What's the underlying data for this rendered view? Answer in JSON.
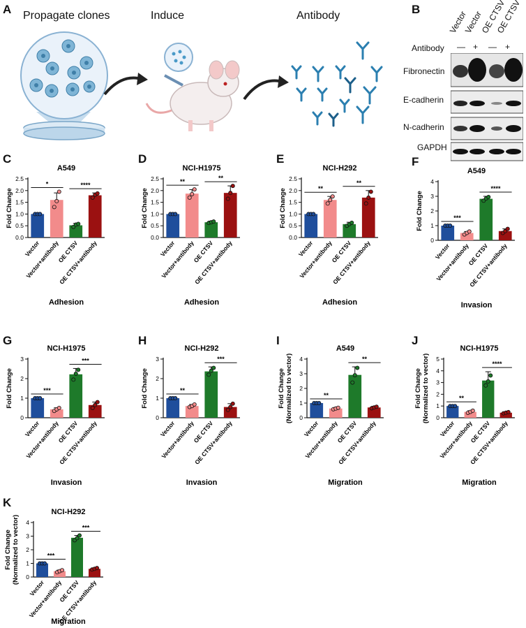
{
  "panels": {
    "A": "A",
    "B": "B",
    "C": "C",
    "D": "D",
    "E": "E",
    "F": "F",
    "G": "G",
    "H": "H",
    "I": "I",
    "J": "J",
    "K": "K"
  },
  "schematic": {
    "step1": "Propagate clones",
    "step2": "Induce",
    "step3": "Antibody"
  },
  "western": {
    "lanes": [
      "Vector",
      "Vector",
      "OE CTSV",
      "OE CTSV"
    ],
    "antibody_label": "Antibody",
    "antibody_states": [
      "—",
      "+",
      "—",
      "+"
    ],
    "proteins": [
      "Fibronectin",
      "E-cadherin",
      "N-cadherin",
      "GAPDH"
    ]
  },
  "colors": {
    "vector": "#1f4e9c",
    "vector_antibody": "#f28b8b",
    "oe_ctsv": "#1e7a2a",
    "oe_ctsv_antibody": "#9b1111"
  },
  "chart_data": [
    {
      "id": "C",
      "type": "bar",
      "title": "A549",
      "xlabel": "Adhesion",
      "ylabel": "Fold Change",
      "categories": [
        "Vector",
        "Vector+antibody",
        "OE CTSV",
        "OE CTSV+antibody"
      ],
      "values": [
        1.0,
        1.6,
        0.52,
        1.8
      ],
      "errors": [
        0.0,
        0.3,
        0.08,
        0.1
      ],
      "points": [
        [
          1.0,
          1.0,
          1.0
        ],
        [
          1.3,
          1.55,
          1.95
        ],
        [
          0.45,
          0.55,
          0.58
        ],
        [
          1.7,
          1.82,
          1.88
        ]
      ],
      "ylim": [
        0.0,
        2.5
      ],
      "yticks": [
        "0.0",
        "0.5",
        "1.0",
        "1.5",
        "2.0",
        "2.5"
      ],
      "ytick_values": [
        0,
        0.5,
        1,
        1.5,
        2,
        2.5
      ],
      "sig": [
        {
          "from": 0,
          "to": 1,
          "label": "*"
        },
        {
          "from": 2,
          "to": 3,
          "label": "****"
        }
      ]
    },
    {
      "id": "D",
      "type": "bar",
      "title": "NCI-H1975",
      "xlabel": "Adhesion",
      "ylabel": "Fold Change",
      "categories": [
        "Vector",
        "Vector+antibody",
        "OE CTSV",
        "OE CTSV+antibody"
      ],
      "values": [
        1.0,
        1.87,
        0.65,
        1.9
      ],
      "errors": [
        0.0,
        0.17,
        0.05,
        0.3
      ],
      "points": [
        [
          1.0,
          1.0,
          1.0
        ],
        [
          1.7,
          1.85,
          2.05
        ],
        [
          0.62,
          0.65,
          0.68
        ],
        [
          1.65,
          1.9,
          2.2
        ]
      ],
      "ylim": [
        0.0,
        2.5
      ],
      "yticks": [
        "0.0",
        "0.5",
        "1.0",
        "1.5",
        "2.0",
        "2.5"
      ],
      "ytick_values": [
        0,
        0.5,
        1,
        1.5,
        2,
        2.5
      ],
      "sig": [
        {
          "from": 0,
          "to": 1,
          "label": "**"
        },
        {
          "from": 2,
          "to": 3,
          "label": "**"
        }
      ]
    },
    {
      "id": "E",
      "type": "bar",
      "title": "NCI-H292",
      "xlabel": "Adhesion",
      "ylabel": "Fold Change",
      "categories": [
        "Vector",
        "Vector+antibody",
        "OE CTSV",
        "OE CTSV+antibody"
      ],
      "values": [
        1.0,
        1.6,
        0.57,
        1.7
      ],
      "errors": [
        0.0,
        0.15,
        0.08,
        0.3
      ],
      "points": [
        [
          1.0,
          1.0,
          1.0
        ],
        [
          1.45,
          1.6,
          1.75
        ],
        [
          0.5,
          0.57,
          0.63
        ],
        [
          1.45,
          1.7,
          1.95
        ]
      ],
      "ylim": [
        0.0,
        2.5
      ],
      "yticks": [
        "0.0",
        "0.5",
        "1.0",
        "1.5",
        "2.0",
        "2.5"
      ],
      "ytick_values": [
        0,
        0.5,
        1,
        1.5,
        2,
        2.5
      ],
      "sig": [
        {
          "from": 0,
          "to": 1,
          "label": "**"
        },
        {
          "from": 2,
          "to": 3,
          "label": "**"
        }
      ]
    },
    {
      "id": "F",
      "type": "bar",
      "title": "A549",
      "xlabel": "Invasion",
      "ylabel": "Fold Change",
      "categories": [
        "Vector",
        "Vector+antibody",
        "OE CTSV",
        "OE CTSV+antibody"
      ],
      "values": [
        1.0,
        0.5,
        2.83,
        0.63
      ],
      "errors": [
        0.0,
        0.1,
        0.17,
        0.15
      ],
      "points": [
        [
          1.0,
          1.0,
          1.0
        ],
        [
          0.4,
          0.5,
          0.6
        ],
        [
          2.7,
          2.85,
          2.95
        ],
        [
          0.5,
          0.63,
          0.78
        ]
      ],
      "ylim": [
        0,
        4
      ],
      "yticks": [
        "0",
        "1",
        "2",
        "3",
        "4"
      ],
      "ytick_values": [
        0,
        1,
        2,
        3,
        4
      ],
      "sig": [
        {
          "from": 0,
          "to": 1,
          "label": "***"
        },
        {
          "from": 2,
          "to": 3,
          "label": "****"
        }
      ]
    },
    {
      "id": "G",
      "type": "bar",
      "title": "NCI-H1975",
      "xlabel": "Invasion",
      "ylabel": "Fold Change",
      "categories": [
        "Vector",
        "Vector+antibody",
        "OE CTSV",
        "OE CTSV+antibody"
      ],
      "values": [
        1.0,
        0.43,
        2.22,
        0.65
      ],
      "errors": [
        0.0,
        0.08,
        0.3,
        0.15
      ],
      "points": [
        [
          1.0,
          1.0,
          1.0
        ],
        [
          0.35,
          0.43,
          0.5
        ],
        [
          1.95,
          2.25,
          2.45
        ],
        [
          0.5,
          0.65,
          0.8
        ]
      ],
      "ylim": [
        0,
        3
      ],
      "yticks": [
        "0",
        "1",
        "2",
        "3"
      ],
      "ytick_values": [
        0,
        1,
        2,
        3
      ],
      "sig": [
        {
          "from": 0,
          "to": 1,
          "label": "***"
        },
        {
          "from": 2,
          "to": 3,
          "label": "***"
        }
      ]
    },
    {
      "id": "H",
      "type": "bar",
      "title": "NCI-H292",
      "xlabel": "Invasion",
      "ylabel": "Fold Change",
      "categories": [
        "Vector",
        "Vector+antibody",
        "OE CTSV",
        "OE CTSV+antibody"
      ],
      "values": [
        1.0,
        0.6,
        2.37,
        0.55
      ],
      "errors": [
        0.0,
        0.08,
        0.23,
        0.17
      ],
      "points": [
        [
          1.0,
          1.0,
          1.0
        ],
        [
          0.55,
          0.6,
          0.68
        ],
        [
          2.2,
          2.4,
          2.55
        ],
        [
          0.4,
          0.55,
          0.72
        ]
      ],
      "ylim": [
        0,
        3
      ],
      "yticks": [
        "0",
        "1",
        "2",
        "3"
      ],
      "ytick_values": [
        0,
        1,
        2,
        3
      ],
      "sig": [
        {
          "from": 0,
          "to": 1,
          "label": "**"
        },
        {
          "from": 2,
          "to": 3,
          "label": "***"
        }
      ]
    },
    {
      "id": "I",
      "type": "bar",
      "title": "A549",
      "xlabel": "Migration",
      "ylabel": "Fold Change",
      "ylabel2": "(Normalized to vector)",
      "categories": [
        "Vector",
        "Vector+antibody",
        "OE CTSV",
        "OE CTSV+antibody"
      ],
      "values": [
        1.0,
        0.63,
        2.92,
        0.7
      ],
      "errors": [
        0.0,
        0.07,
        0.55,
        0.08
      ],
      "points": [
        [
          1.0,
          1.0,
          1.0
        ],
        [
          0.58,
          0.63,
          0.68
        ],
        [
          2.4,
          2.9,
          3.4
        ],
        [
          0.65,
          0.7,
          0.75
        ]
      ],
      "ylim": [
        0,
        4
      ],
      "yticks": [
        "0",
        "1",
        "2",
        "3",
        "4"
      ],
      "ytick_values": [
        0,
        1,
        2,
        3,
        4
      ],
      "sig": [
        {
          "from": 0,
          "to": 1,
          "label": "**"
        },
        {
          "from": 2,
          "to": 3,
          "label": "**"
        }
      ]
    },
    {
      "id": "J",
      "type": "bar",
      "title": "NCI-H1975",
      "xlabel": "Migration",
      "ylabel": "Fold Change",
      "ylabel2": "(Normalized to vector)",
      "categories": [
        "Vector",
        "Vector+antibody",
        "OE CTSV",
        "OE CTSV+antibody"
      ],
      "values": [
        1.0,
        0.5,
        3.17,
        0.43
      ],
      "errors": [
        0.0,
        0.1,
        0.75,
        0.06
      ],
      "points": [
        [
          1.0,
          1.0,
          1.0
        ],
        [
          0.42,
          0.5,
          0.6
        ],
        [
          2.75,
          3.1,
          3.6
        ],
        [
          0.38,
          0.43,
          0.48
        ]
      ],
      "ylim": [
        0,
        5
      ],
      "yticks": [
        "0",
        "1",
        "2",
        "3",
        "4",
        "5"
      ],
      "ytick_values": [
        0,
        1,
        2,
        3,
        4,
        5
      ],
      "sig": [
        {
          "from": 0,
          "to": 1,
          "label": "**"
        },
        {
          "from": 2,
          "to": 3,
          "label": "****"
        }
      ]
    },
    {
      "id": "K",
      "type": "bar",
      "title": "NCI-H292",
      "xlabel": "Migration",
      "ylabel": "Fold Change",
      "ylabel2": "(Normalized to vector)",
      "categories": [
        "Vector",
        "Vector+antibody",
        "OE CTSV",
        "OE CTSV+antibody"
      ],
      "values": [
        1.0,
        0.43,
        2.88,
        0.6
      ],
      "errors": [
        0.0,
        0.08,
        0.17,
        0.07
      ],
      "points": [
        [
          1.0,
          1.0,
          1.0
        ],
        [
          0.35,
          0.43,
          0.5
        ],
        [
          2.7,
          2.85,
          3.05
        ],
        [
          0.55,
          0.6,
          0.66
        ]
      ],
      "ylim": [
        0,
        4
      ],
      "yticks": [
        "0",
        "1",
        "2",
        "3",
        "4"
      ],
      "ytick_values": [
        0,
        1,
        2,
        3,
        4
      ],
      "sig": [
        {
          "from": 0,
          "to": 1,
          "label": "***"
        },
        {
          "from": 2,
          "to": 3,
          "label": "***"
        }
      ]
    }
  ]
}
